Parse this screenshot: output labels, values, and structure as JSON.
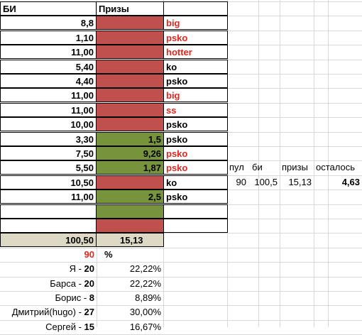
{
  "header": {
    "bi": "БИ",
    "prizes": "Призы"
  },
  "rows": [
    {
      "bi": "8,8",
      "prize": "",
      "color": "red",
      "tag": "big",
      "tag_red": true
    },
    {
      "bi": "1,10",
      "prize": "",
      "color": "red",
      "tag": "psko",
      "tag_red": true
    },
    {
      "bi": "11,00",
      "prize": "",
      "color": "red",
      "tag": "hotter",
      "tag_red": true
    },
    {
      "bi": "5,40",
      "prize": "",
      "color": "red",
      "tag": "ko",
      "tag_red": false
    },
    {
      "bi": "4,40",
      "prize": "",
      "color": "red",
      "tag": "psko",
      "tag_red": false
    },
    {
      "bi": "11,00",
      "prize": "",
      "color": "red",
      "tag": "big",
      "tag_red": true
    },
    {
      "bi": "11,00",
      "prize": "",
      "color": "red",
      "tag": "ss",
      "tag_red": true
    },
    {
      "bi": "10,00",
      "prize": "",
      "color": "red",
      "tag": "psko",
      "tag_red": false
    },
    {
      "bi": "3,30",
      "prize": "1,5",
      "color": "green",
      "tag": "psko",
      "tag_red": false
    },
    {
      "bi": "7,50",
      "prize": "9,26",
      "color": "green",
      "tag": "psko",
      "tag_red": true
    },
    {
      "bi": "5,50",
      "prize": "1,87",
      "color": "green",
      "tag": "psko",
      "tag_red": true
    },
    {
      "bi": "10,50",
      "prize": "",
      "color": "red",
      "tag": "ko",
      "tag_red": false
    },
    {
      "bi": "11,00",
      "prize": "2,5",
      "color": "green",
      "tag": "psko",
      "tag_red": false
    },
    {
      "bi": "",
      "prize": "",
      "color": "green",
      "tag": "",
      "tag_red": false
    },
    {
      "bi": "",
      "prize": "",
      "color": "red",
      "tag": "",
      "tag_red": false
    }
  ],
  "totals": {
    "bi": "100,50",
    "prizes": "15,13"
  },
  "pool": {
    "value": "90",
    "percent_label": "%"
  },
  "players": [
    {
      "name": "Я - ",
      "amount": "20",
      "pct": "22,22%"
    },
    {
      "name": "Барса - ",
      "amount": "20",
      "pct": "22,22%"
    },
    {
      "name": "Борис - ",
      "amount": "8",
      "pct": "8,89%"
    },
    {
      "name": "Дмитрий(hugo) - ",
      "amount": "27",
      "pct": "30,00%"
    },
    {
      "name": "Сергей - ",
      "amount": "15",
      "pct": "16,67%"
    }
  ],
  "summary": {
    "headers": {
      "pool": "пул",
      "bi": "би",
      "prizes": "призы",
      "remaining": "осталось"
    },
    "values": {
      "pool": "90",
      "bi": "100,5",
      "prizes": "15,13",
      "remaining": "4,63"
    }
  }
}
